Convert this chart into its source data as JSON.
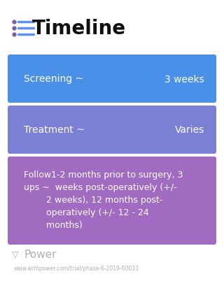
{
  "title": "Timeline",
  "title_icon_color": "#7B5EA7",
  "title_icon_line_color": "#5B8FF9",
  "background_color": "#ffffff",
  "rows": [
    {
      "label_left": "Screening ~",
      "label_right": "3 weeks",
      "bg_color": "#4A8FE8",
      "text_color": "#ffffff",
      "type": "simple"
    },
    {
      "label_left": "Treatment ~",
      "label_right": "Varies",
      "bg_color": "#7B80D4",
      "text_color": "#ffffff",
      "type": "simple"
    },
    {
      "label_text": "Follow1-2 months prior to surgery, 3\nups ~  weeks post-operatively (+/-\n        2 weeks), 12 months post-\n        operatively (+/- 12 - 24\n        months)",
      "bg_color": "#A06BC0",
      "text_color": "#ffffff",
      "type": "multiline"
    }
  ],
  "footer_logo_text": "Power",
  "footer_url": "www.withpower.com/trial/phase-6-2019-60033",
  "footer_color": "#b0b0b0"
}
